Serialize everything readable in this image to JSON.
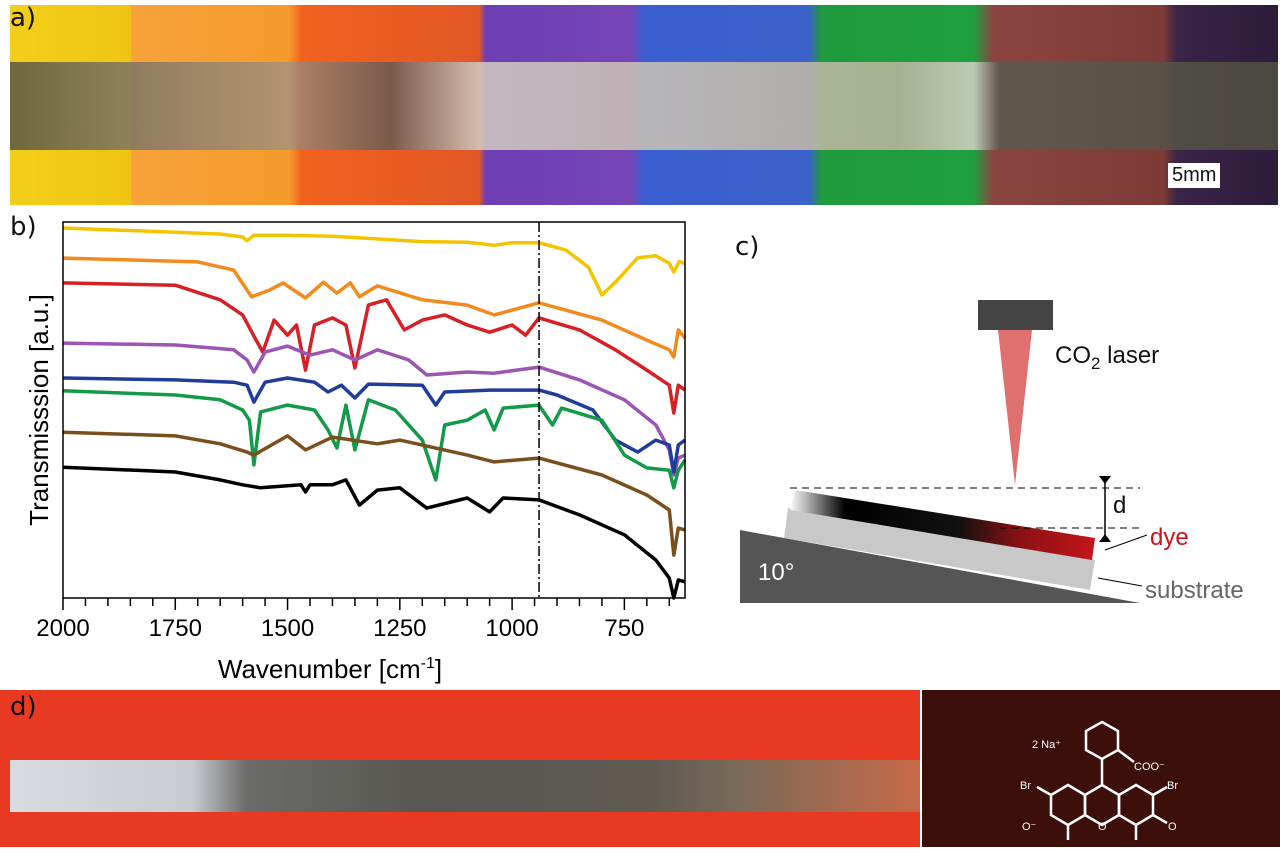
{
  "panels": {
    "a": "a)",
    "b": "b)",
    "c": "c)",
    "d": "d)"
  },
  "photo_a": {
    "scale_bar": "5mm"
  },
  "diagram_c": {
    "laser_label_pre": "CO",
    "laser_label_sub": "2",
    "laser_label_post": " laser",
    "d_label": "d",
    "dye_label": "dye",
    "substrate_label": "substrate",
    "angle_label": "10°",
    "colors": {
      "dye": "#c4161c",
      "laser": "#444444",
      "substrate": "#c8c8c8",
      "ramp": "#555555"
    }
  },
  "molecule_d": {
    "counterion": "2 Na⁺",
    "carboxylate": "COO⁻",
    "br": "Br",
    "oxide": "O⁻",
    "ring_o": "O",
    "keto_o": "O"
  },
  "chart_data": {
    "type": "line",
    "xlabel": "Wavenumber [cm",
    "xlabel_sup": "-1",
    "xlabel_end": "]",
    "ylabel": "Transmisssion [a.u.]",
    "xlim": [
      2000,
      615
    ],
    "ylim": [
      0,
      100
    ],
    "x_reversed": true,
    "x_ticks": [
      2000,
      1750,
      1500,
      1250,
      1000,
      750
    ],
    "x_tick_labels": [
      "2000",
      "1750",
      "1500",
      "1250",
      "1000",
      "750"
    ],
    "y_ticks_shown": false,
    "grid": false,
    "legend": "none",
    "vline": {
      "x": 940,
      "style": "dash-dot"
    },
    "series": [
      {
        "color": "#f5c400",
        "points": [
          [
            2000,
            98.4
          ],
          [
            1800,
            97.5
          ],
          [
            1650,
            96.8
          ],
          [
            1600,
            96
          ],
          [
            1590,
            95
          ],
          [
            1575,
            96.5
          ],
          [
            1500,
            96.5
          ],
          [
            1400,
            96.2
          ],
          [
            1300,
            95.5
          ],
          [
            1200,
            94.8
          ],
          [
            1100,
            94.6
          ],
          [
            1040,
            93.8
          ],
          [
            1000,
            94.5
          ],
          [
            940,
            94.5
          ],
          [
            880,
            92.5
          ],
          [
            830,
            88
          ],
          [
            800,
            80.6
          ],
          [
            770,
            84
          ],
          [
            720,
            90.5
          ],
          [
            680,
            91
          ],
          [
            650,
            89
          ],
          [
            640,
            86.7
          ],
          [
            628,
            89.5
          ],
          [
            615,
            89
          ]
        ]
      },
      {
        "color": "#f28a1e",
        "points": [
          [
            2000,
            90.4
          ],
          [
            1700,
            89.4
          ],
          [
            1620,
            87.2
          ],
          [
            1580,
            80.1
          ],
          [
            1540,
            81.9
          ],
          [
            1510,
            83.8
          ],
          [
            1460,
            79.8
          ],
          [
            1420,
            84.0
          ],
          [
            1390,
            81.1
          ],
          [
            1360,
            83.8
          ],
          [
            1340,
            80.1
          ],
          [
            1300,
            83.0
          ],
          [
            1200,
            79.3
          ],
          [
            1100,
            77.9
          ],
          [
            1040,
            75.3
          ],
          [
            940,
            78.5
          ],
          [
            800,
            73.9
          ],
          [
            700,
            68.6
          ],
          [
            650,
            66
          ],
          [
            640,
            64.1
          ],
          [
            630,
            71.3
          ],
          [
            615,
            69.1
          ]
        ]
      },
      {
        "color": "#d71f26",
        "points": [
          [
            2000,
            83.8
          ],
          [
            1750,
            83.2
          ],
          [
            1650,
            79.3
          ],
          [
            1600,
            75.3
          ],
          [
            1570,
            68.6
          ],
          [
            1555,
            65.4
          ],
          [
            1530,
            73.9
          ],
          [
            1500,
            69.9
          ],
          [
            1480,
            72.6
          ],
          [
            1460,
            60.6
          ],
          [
            1440,
            72.6
          ],
          [
            1400,
            74.5
          ],
          [
            1370,
            72.6
          ],
          [
            1350,
            61.2
          ],
          [
            1320,
            77.9
          ],
          [
            1280,
            79.3
          ],
          [
            1240,
            71.3
          ],
          [
            1200,
            73.9
          ],
          [
            1150,
            75.3
          ],
          [
            1100,
            72.6
          ],
          [
            1050,
            70.7
          ],
          [
            1000,
            72.6
          ],
          [
            970,
            69.9
          ],
          [
            940,
            74.5
          ],
          [
            850,
            71.3
          ],
          [
            770,
            66.0
          ],
          [
            700,
            60.6
          ],
          [
            650,
            56.6
          ],
          [
            640,
            49.2
          ],
          [
            630,
            56.6
          ],
          [
            615,
            55.3
          ]
        ]
      },
      {
        "color": "#9b55b3",
        "points": [
          [
            2000,
            67.8
          ],
          [
            1750,
            67.3
          ],
          [
            1620,
            66.0
          ],
          [
            1590,
            63.3
          ],
          [
            1575,
            60.1
          ],
          [
            1550,
            65.4
          ],
          [
            1500,
            67.0
          ],
          [
            1450,
            64.6
          ],
          [
            1400,
            66.0
          ],
          [
            1350,
            63.3
          ],
          [
            1300,
            66.0
          ],
          [
            1230,
            63.3
          ],
          [
            1190,
            59.3
          ],
          [
            1100,
            60.1
          ],
          [
            1040,
            59.8
          ],
          [
            940,
            61.4
          ],
          [
            850,
            58.0
          ],
          [
            750,
            52.7
          ],
          [
            680,
            46.0
          ],
          [
            650,
            39.4
          ],
          [
            640,
            32.7
          ],
          [
            630,
            37.2
          ],
          [
            615,
            38.0
          ]
        ]
      },
      {
        "color": "#1f3d99",
        "points": [
          [
            2000,
            58.5
          ],
          [
            1750,
            58.0
          ],
          [
            1620,
            57.4
          ],
          [
            1590,
            56.6
          ],
          [
            1575,
            52.1
          ],
          [
            1550,
            57.4
          ],
          [
            1500,
            58.5
          ],
          [
            1440,
            57.4
          ],
          [
            1410,
            54.8
          ],
          [
            1380,
            56.6
          ],
          [
            1350,
            53.2
          ],
          [
            1320,
            56.9
          ],
          [
            1200,
            56.6
          ],
          [
            1170,
            51.3
          ],
          [
            1150,
            54.8
          ],
          [
            1050,
            55.3
          ],
          [
            940,
            55.3
          ],
          [
            900,
            54.0
          ],
          [
            820,
            50.0
          ],
          [
            770,
            42.0
          ],
          [
            720,
            38.8
          ],
          [
            680,
            42.0
          ],
          [
            650,
            40.7
          ],
          [
            640,
            33.5
          ],
          [
            630,
            40.7
          ],
          [
            615,
            42.0
          ]
        ]
      },
      {
        "color": "#129a48",
        "points": [
          [
            2000,
            55.1
          ],
          [
            1750,
            54.0
          ],
          [
            1650,
            52.7
          ],
          [
            1600,
            50.0
          ],
          [
            1585,
            47.3
          ],
          [
            1575,
            35.4
          ],
          [
            1560,
            49.5
          ],
          [
            1500,
            51.3
          ],
          [
            1440,
            50.0
          ],
          [
            1410,
            44.7
          ],
          [
            1390,
            39.9
          ],
          [
            1370,
            51.3
          ],
          [
            1350,
            39.4
          ],
          [
            1320,
            52.7
          ],
          [
            1260,
            50.0
          ],
          [
            1200,
            42.0
          ],
          [
            1170,
            31.4
          ],
          [
            1150,
            46.0
          ],
          [
            1100,
            47.3
          ],
          [
            1060,
            50.0
          ],
          [
            1040,
            44.7
          ],
          [
            1020,
            50.5
          ],
          [
            940,
            51.3
          ],
          [
            910,
            46.0
          ],
          [
            890,
            50.5
          ],
          [
            800,
            47.3
          ],
          [
            750,
            38.0
          ],
          [
            700,
            34.6
          ],
          [
            650,
            34.0
          ],
          [
            640,
            29.3
          ],
          [
            630,
            34.0
          ],
          [
            615,
            36.7
          ]
        ]
      },
      {
        "color": "#7a4f1e",
        "points": [
          [
            2000,
            44.1
          ],
          [
            1750,
            43.1
          ],
          [
            1650,
            41.0
          ],
          [
            1590,
            38.8
          ],
          [
            1575,
            38.0
          ],
          [
            1500,
            43.1
          ],
          [
            1460,
            39.4
          ],
          [
            1400,
            42.8
          ],
          [
            1300,
            41.0
          ],
          [
            1250,
            42.0
          ],
          [
            1100,
            38.0
          ],
          [
            1040,
            36.2
          ],
          [
            940,
            37.2
          ],
          [
            800,
            32.7
          ],
          [
            700,
            27.4
          ],
          [
            650,
            23.4
          ],
          [
            640,
            11.4
          ],
          [
            630,
            18.6
          ],
          [
            615,
            18.1
          ]
        ]
      },
      {
        "color": "#000000",
        "points": [
          [
            2000,
            34.8
          ],
          [
            1750,
            33.5
          ],
          [
            1650,
            31.4
          ],
          [
            1600,
            30.1
          ],
          [
            1560,
            29.3
          ],
          [
            1470,
            30.1
          ],
          [
            1460,
            28.2
          ],
          [
            1450,
            30.1
          ],
          [
            1400,
            30.1
          ],
          [
            1370,
            31.4
          ],
          [
            1340,
            24.7
          ],
          [
            1300,
            28.7
          ],
          [
            1250,
            29.3
          ],
          [
            1190,
            23.9
          ],
          [
            1100,
            26.6
          ],
          [
            1050,
            22.9
          ],
          [
            1020,
            26.6
          ],
          [
            940,
            26.1
          ],
          [
            850,
            22.1
          ],
          [
            750,
            16.8
          ],
          [
            680,
            10.1
          ],
          [
            650,
            5.3
          ],
          [
            640,
            0
          ],
          [
            630,
            4.8
          ],
          [
            615,
            4.3
          ]
        ]
      }
    ]
  }
}
